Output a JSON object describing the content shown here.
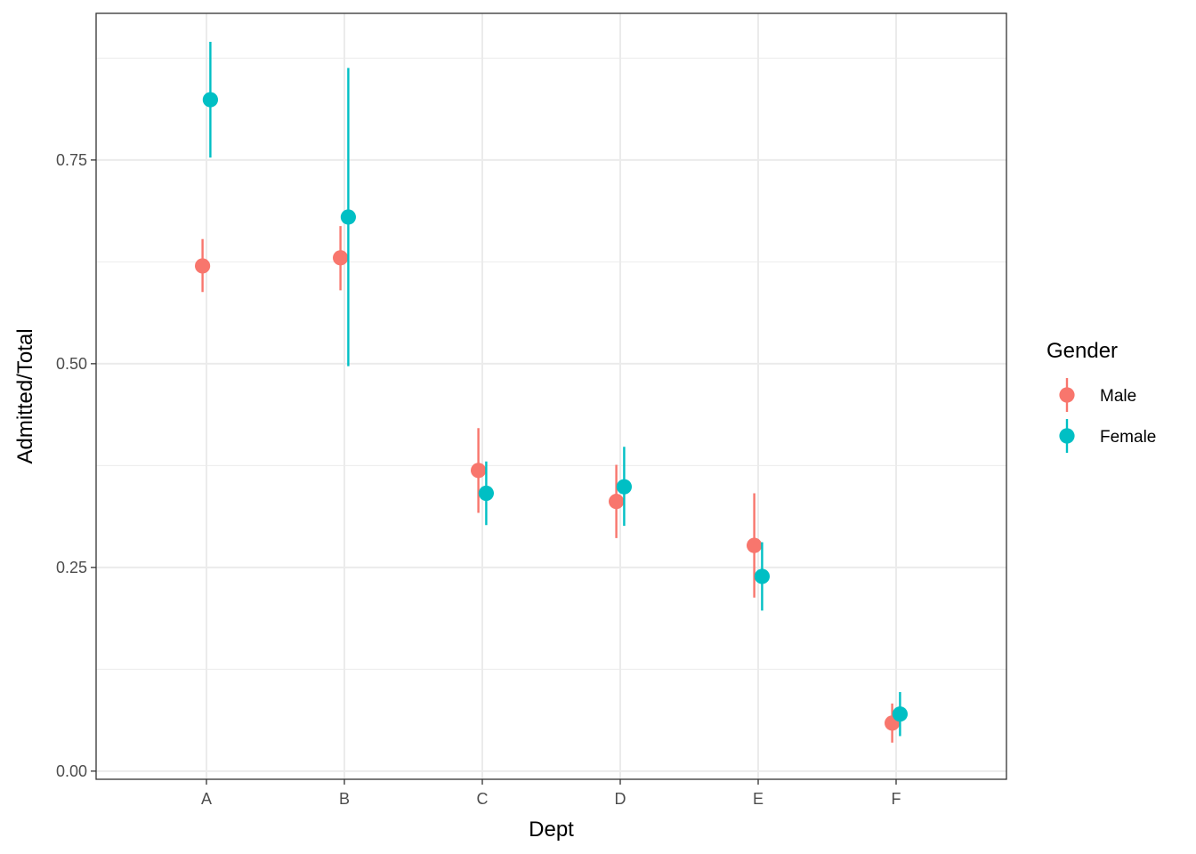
{
  "chart_data": {
    "type": "scatter",
    "subtype": "pointrange",
    "title": "",
    "xlabel": "Dept",
    "ylabel": "Admitted/Total",
    "categories": [
      "A",
      "B",
      "C",
      "D",
      "E",
      "F"
    ],
    "ylim": [
      -0.01,
      0.93
    ],
    "yticks": [
      0.0,
      0.25,
      0.5,
      0.75
    ],
    "ytick_labels": [
      "0.00",
      "0.25",
      "0.50",
      "0.75"
    ],
    "grid": true,
    "legend": {
      "title": "Gender",
      "position": "right"
    },
    "series": [
      {
        "name": "Male",
        "color": "#F8766D",
        "values": [
          0.62,
          0.63,
          0.369,
          0.331,
          0.277,
          0.059
        ],
        "lower": [
          0.588,
          0.59,
          0.317,
          0.286,
          0.213,
          0.035
        ],
        "upper": [
          0.653,
          0.669,
          0.421,
          0.376,
          0.341,
          0.083
        ]
      },
      {
        "name": "Female",
        "color": "#00BFC4",
        "values": [
          0.824,
          0.68,
          0.341,
          0.349,
          0.239,
          0.07
        ],
        "lower": [
          0.753,
          0.497,
          0.302,
          0.301,
          0.197,
          0.043
        ],
        "upper": [
          0.895,
          0.863,
          0.38,
          0.398,
          0.281,
          0.097
        ]
      }
    ]
  }
}
